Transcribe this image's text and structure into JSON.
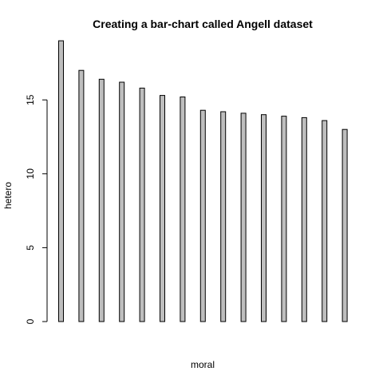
{
  "chart_data": {
    "type": "bar",
    "title": "Creating a bar-chart called Angell dataset",
    "xlabel": "moral",
    "ylabel": "hetero",
    "ylim": [
      0,
      19.6
    ],
    "yticks": [
      0,
      5,
      10,
      15
    ],
    "grid": false,
    "legend": "none",
    "bar_color": "#bebebe",
    "values": [
      19.0,
      17.0,
      16.4,
      16.2,
      15.8,
      15.3,
      15.2,
      14.3,
      14.2,
      14.1,
      14.0,
      13.9,
      13.8,
      13.6,
      13.0
    ]
  }
}
